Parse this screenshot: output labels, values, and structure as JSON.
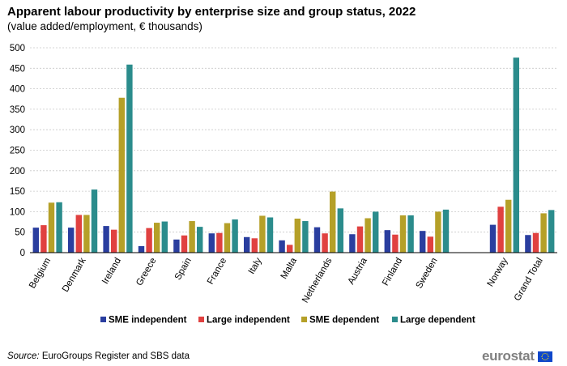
{
  "header": {
    "title": "Apparent labour productivity by enterprise size and group status, 2022",
    "subtitle": "(value added/employment, € thousands)"
  },
  "footer": {
    "source_label": "Source:",
    "source_text": " EuroGroups Register and SBS data",
    "logo_text": "eurostat"
  },
  "colors": {
    "sme_independent": "#2a3e9f",
    "large_independent": "#e04140",
    "sme_dependent": "#b5a028",
    "large_dependent": "#2b8c8c",
    "grid": "#c8c8c8",
    "axis": "#999999",
    "flag": "#0e47cb",
    "stars": "#ffe100"
  },
  "chart_data": {
    "type": "bar",
    "title": "Apparent labour productivity by enterprise size and group status, 2022",
    "subtitle": "(value added/employment, € thousands)",
    "xlabel": "",
    "ylabel": "",
    "ylim": [
      0,
      500
    ],
    "yticks": [
      0,
      50,
      100,
      150,
      200,
      250,
      300,
      350,
      400,
      450,
      500
    ],
    "grid": true,
    "legend_position": "bottom",
    "categories": [
      "Belgium",
      "Denmark",
      "Ireland",
      "Greece",
      "Spain",
      "France",
      "Italy",
      "Malta",
      "Netherlands",
      "Austria",
      "Finland",
      "Sweden",
      "",
      "Norway",
      "Grand Total"
    ],
    "series": [
      {
        "name": "SME independent",
        "color_key": "sme_independent",
        "values": [
          61,
          61,
          65,
          16,
          32,
          47,
          38,
          30,
          62,
          45,
          55,
          53,
          null,
          68,
          43
        ]
      },
      {
        "name": "Large independent",
        "color_key": "large_independent",
        "values": [
          67,
          92,
          56,
          60,
          42,
          48,
          35,
          19,
          47,
          64,
          44,
          39,
          null,
          112,
          48
        ]
      },
      {
        "name": "SME dependent",
        "color_key": "sme_dependent",
        "values": [
          122,
          92,
          378,
          73,
          77,
          72,
          90,
          83,
          149,
          84,
          91,
          100,
          null,
          129,
          96
        ]
      },
      {
        "name": "Large dependent",
        "color_key": "large_dependent",
        "values": [
          123,
          154,
          459,
          76,
          63,
          81,
          86,
          77,
          108,
          100,
          91,
          105,
          null,
          476,
          104
        ]
      }
    ]
  }
}
